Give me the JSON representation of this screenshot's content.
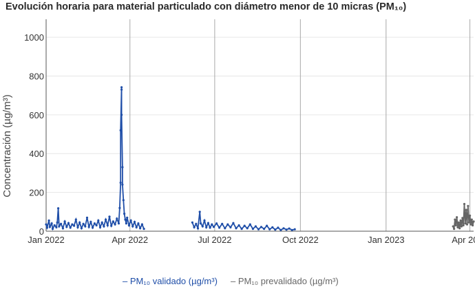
{
  "chart_data": {
    "type": "line",
    "title": "Evolución horaria para material particulado con diámetro menor de 10 micras (PM₁₀)",
    "ylabel": "Concentración (µg/m³)",
    "xlabel": "",
    "ylim": [
      0,
      1050
    ],
    "xlim": [
      "2022-01-01",
      "2023-04-05"
    ],
    "y_ticks": [
      0,
      200,
      400,
      600,
      800,
      1000
    ],
    "x_ticks": [
      {
        "date": "2022-01-01",
        "label": "Jan 2022"
      },
      {
        "date": "2022-04-01",
        "label": "Apr 2022"
      },
      {
        "date": "2022-07-01",
        "label": "Jul 2022"
      },
      {
        "date": "2022-10-01",
        "label": "Oct 2022"
      },
      {
        "date": "2023-01-01",
        "label": "Jan 2023"
      },
      {
        "date": "2023-04-01",
        "label": "Apr 2023"
      }
    ],
    "grid": true,
    "legend_position": "bottom",
    "series": [
      {
        "name": "PM₁₀ validado (µg/m³)",
        "color": "#1f4ea8",
        "points": [
          [
            "2022-01-01",
            35
          ],
          [
            "2022-01-02",
            18
          ],
          [
            "2022-01-04",
            55
          ],
          [
            "2022-01-05",
            22
          ],
          [
            "2022-01-07",
            40
          ],
          [
            "2022-01-08",
            12
          ],
          [
            "2022-01-10",
            30
          ],
          [
            "2022-01-12",
            20
          ],
          [
            "2022-01-13",
            45
          ],
          [
            "2022-01-14",
            118
          ],
          [
            "2022-01-15",
            25
          ],
          [
            "2022-01-17",
            38
          ],
          [
            "2022-01-19",
            15
          ],
          [
            "2022-01-21",
            50
          ],
          [
            "2022-01-23",
            22
          ],
          [
            "2022-01-25",
            42
          ],
          [
            "2022-01-27",
            18
          ],
          [
            "2022-01-29",
            35
          ],
          [
            "2022-01-31",
            28
          ],
          [
            "2022-02-02",
            60
          ],
          [
            "2022-02-04",
            20
          ],
          [
            "2022-02-06",
            45
          ],
          [
            "2022-02-08",
            15
          ],
          [
            "2022-02-10",
            38
          ],
          [
            "2022-02-12",
            25
          ],
          [
            "2022-02-14",
            70
          ],
          [
            "2022-02-16",
            22
          ],
          [
            "2022-02-18",
            48
          ],
          [
            "2022-02-20",
            18
          ],
          [
            "2022-02-22",
            40
          ],
          [
            "2022-02-24",
            30
          ],
          [
            "2022-02-26",
            55
          ],
          [
            "2022-02-28",
            20
          ],
          [
            "2022-03-02",
            45
          ],
          [
            "2022-03-04",
            25
          ],
          [
            "2022-03-06",
            60
          ],
          [
            "2022-03-08",
            30
          ],
          [
            "2022-03-10",
            75
          ],
          [
            "2022-03-12",
            28
          ],
          [
            "2022-03-14",
            50
          ],
          [
            "2022-03-16",
            35
          ],
          [
            "2022-03-18",
            65
          ],
          [
            "2022-03-20",
            40
          ],
          [
            "2022-03-21",
            120
          ],
          [
            "2022-03-22",
            250
          ],
          [
            "2022-03-22",
            520
          ],
          [
            "2022-03-23",
            742
          ],
          [
            "2022-03-23",
            730
          ],
          [
            "2022-03-23",
            600
          ],
          [
            "2022-03-24",
            330
          ],
          [
            "2022-03-24",
            240
          ],
          [
            "2022-03-25",
            160
          ],
          [
            "2022-03-26",
            90
          ],
          [
            "2022-03-27",
            60
          ],
          [
            "2022-03-28",
            40
          ],
          [
            "2022-03-29",
            70
          ],
          [
            "2022-03-31",
            30
          ],
          [
            "2022-04-02",
            55
          ],
          [
            "2022-04-04",
            25
          ],
          [
            "2022-04-06",
            48
          ],
          [
            "2022-04-08",
            20
          ],
          [
            "2022-04-10",
            40
          ],
          [
            "2022-04-12",
            15
          ],
          [
            "2022-04-14",
            35
          ],
          [
            "2022-04-16",
            12
          ],
          [
            "2022-06-07",
            45
          ],
          [
            "2022-06-09",
            20
          ],
          [
            "2022-06-11",
            38
          ],
          [
            "2022-06-13",
            15
          ],
          [
            "2022-06-15",
            100
          ],
          [
            "2022-06-16",
            40
          ],
          [
            "2022-06-18",
            25
          ],
          [
            "2022-06-20",
            55
          ],
          [
            "2022-06-22",
            20
          ],
          [
            "2022-06-24",
            42
          ],
          [
            "2022-06-26",
            18
          ],
          [
            "2022-06-28",
            35
          ],
          [
            "2022-06-30",
            22
          ],
          [
            "2022-07-03",
            40
          ],
          [
            "2022-07-06",
            18
          ],
          [
            "2022-07-09",
            38
          ],
          [
            "2022-07-12",
            15
          ],
          [
            "2022-07-15",
            35
          ],
          [
            "2022-07-18",
            20
          ],
          [
            "2022-07-21",
            42
          ],
          [
            "2022-07-24",
            15
          ],
          [
            "2022-07-27",
            30
          ],
          [
            "2022-07-30",
            12
          ],
          [
            "2022-08-02",
            28
          ],
          [
            "2022-08-05",
            15
          ],
          [
            "2022-08-08",
            35
          ],
          [
            "2022-08-11",
            12
          ],
          [
            "2022-08-14",
            25
          ],
          [
            "2022-08-17",
            10
          ],
          [
            "2022-08-20",
            22
          ],
          [
            "2022-08-23",
            12
          ],
          [
            "2022-08-26",
            28
          ],
          [
            "2022-08-29",
            10
          ],
          [
            "2022-09-01",
            20
          ],
          [
            "2022-09-04",
            8
          ],
          [
            "2022-09-07",
            18
          ],
          [
            "2022-09-10",
            6
          ],
          [
            "2022-09-13",
            15
          ],
          [
            "2022-09-16",
            8
          ],
          [
            "2022-09-19",
            14
          ],
          [
            "2022-09-22",
            6
          ],
          [
            "2022-09-25",
            10
          ]
        ]
      },
      {
        "name": "PM₁₀ prevalidado (µg/m³)",
        "color": "#666666",
        "points": [
          [
            "2023-03-14",
            25
          ],
          [
            "2023-03-15",
            12
          ],
          [
            "2023-03-16",
            60
          ],
          [
            "2023-03-17",
            30
          ],
          [
            "2023-03-18",
            72
          ],
          [
            "2023-03-19",
            20
          ],
          [
            "2023-03-20",
            45
          ],
          [
            "2023-03-21",
            15
          ],
          [
            "2023-03-22",
            55
          ],
          [
            "2023-03-23",
            25
          ],
          [
            "2023-03-24",
            68
          ],
          [
            "2023-03-25",
            30
          ],
          [
            "2023-03-26",
            140
          ],
          [
            "2023-03-27",
            40
          ],
          [
            "2023-03-28",
            110
          ],
          [
            "2023-03-29",
            35
          ],
          [
            "2023-03-30",
            130
          ],
          [
            "2023-03-31",
            45
          ],
          [
            "2023-04-01",
            80
          ],
          [
            "2023-04-02",
            35
          ],
          [
            "2023-04-03",
            60
          ],
          [
            "2023-04-04",
            30
          ],
          [
            "2023-04-05",
            50
          ]
        ]
      }
    ]
  }
}
